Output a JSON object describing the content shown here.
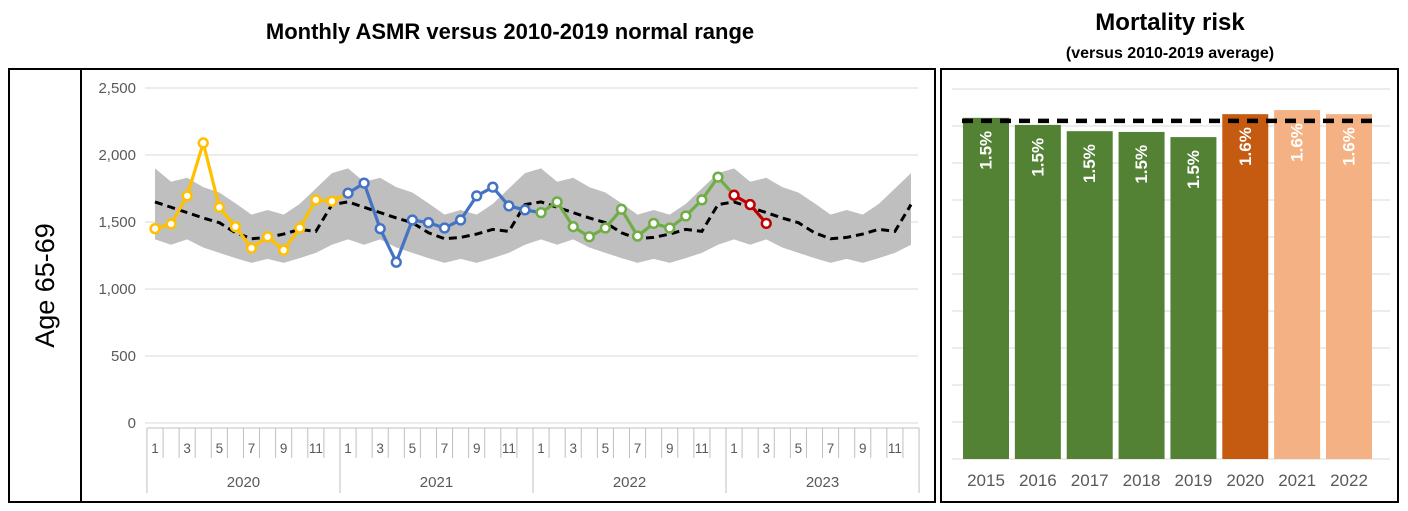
{
  "row_label": "Age 65-69",
  "chart_data": [
    {
      "type": "line",
      "title": "Monthly ASMR versus 2010-2019 normal range",
      "row_label": "Age 65-69",
      "ylim": [
        0,
        2500
      ],
      "yticks": [
        0,
        500,
        1000,
        1500,
        2000,
        2500
      ],
      "ytick_labels": [
        "0",
        "500",
        "1,000",
        "1,500",
        "2,000",
        "2,500"
      ],
      "month_tick_labels": [
        "1",
        "3",
        "5",
        "7",
        "9",
        "11"
      ],
      "year_groups": [
        "2020",
        "2021",
        "2022",
        "2023"
      ],
      "grid": true,
      "legend": "none",
      "series": [
        {
          "name": "2020",
          "color": "#FFC000",
          "values": [
            1450,
            1485,
            1695,
            2090,
            1610,
            1465,
            1305,
            1390,
            1290,
            1455,
            1665,
            1655
          ]
        },
        {
          "name": "2021",
          "color": "#4472C4",
          "values": [
            1715,
            1790,
            1450,
            1200,
            1515,
            1495,
            1455,
            1515,
            1695,
            1760,
            1620,
            1590
          ]
        },
        {
          "name": "2022",
          "color": "#70AD47",
          "values": [
            1570,
            1650,
            1465,
            1390,
            1455,
            1595,
            1395,
            1490,
            1455,
            1545,
            1665,
            1835
          ]
        },
        {
          "name": "2023",
          "color": "#C00000",
          "values": [
            1700,
            1630,
            1490
          ]
        }
      ],
      "normal_range_band": {
        "name": "2010-2019 normal range",
        "color": "#BFBFBF",
        "upper_monthly": [
          1900,
          1800,
          1830,
          1760,
          1720,
          1640,
          1555,
          1590,
          1555,
          1635,
          1750,
          1865
        ],
        "lower_monthly": [
          1370,
          1330,
          1370,
          1310,
          1270,
          1230,
          1195,
          1225,
          1195,
          1230,
          1270,
          1330
        ]
      },
      "average_line": {
        "name": "2010-2019 average",
        "style": "dashed",
        "color": "#000000",
        "monthly": [
          1650,
          1610,
          1570,
          1530,
          1495,
          1420,
          1375,
          1385,
          1410,
          1445,
          1430,
          1630
        ]
      }
    },
    {
      "type": "bar",
      "title": "Mortality risk",
      "subtitle": "(versus 2010-2019 average)",
      "categories": [
        "2015",
        "2016",
        "2017",
        "2018",
        "2019",
        "2020",
        "2021",
        "2022"
      ],
      "bar_labels": [
        "1.5%",
        "1.5%",
        "1.5%",
        "1.5%",
        "1.5%",
        "1.6%",
        "1.6%",
        "1.6%"
      ],
      "bar_colors": [
        "#548235",
        "#548235",
        "#548235",
        "#548235",
        "#548235",
        "#C55A11",
        "#F4B183",
        "#F4B183"
      ],
      "relative_heights": [
        0.922,
        0.903,
        0.886,
        0.884,
        0.87,
        0.932,
        0.943,
        0.932
      ],
      "label_color": "#FFFFFF",
      "average_line": {
        "name": "2010-2019 average",
        "style": "dashed",
        "color": "#000000",
        "relative_height": 0.914
      },
      "grid": true
    }
  ],
  "style_colors": {
    "gridline": "#D9D9D9",
    "axis_text": "#595959",
    "axis_line": "#BFBFBF",
    "panel_border": "#000000"
  }
}
